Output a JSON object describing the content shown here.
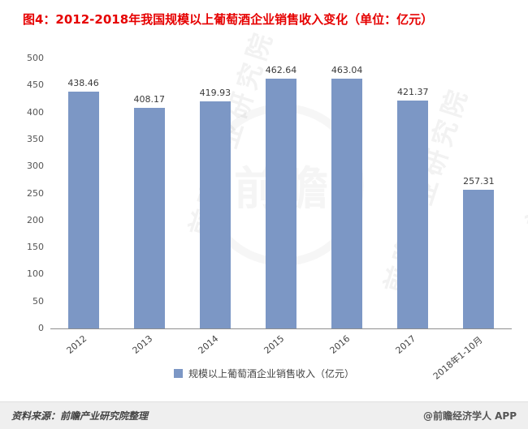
{
  "title": "图4：2012-2018年我国规模以上葡萄酒企业销售收入变化（单位：亿元）",
  "chart_data": {
    "type": "bar",
    "categories": [
      "2012",
      "2013",
      "2014",
      "2015",
      "2016",
      "2017",
      "2018年1-10月"
    ],
    "values": [
      438.46,
      408.17,
      419.93,
      462.64,
      463.04,
      421.37,
      257.31
    ],
    "value_labels": [
      "438.46",
      "408.17",
      "419.93",
      "462.64",
      "463.04",
      "421.37",
      "257.31"
    ],
    "title": "图4：2012-2018年我国规模以上葡萄酒企业销售收入变化（单位：亿元）",
    "xlabel": "",
    "ylabel": "",
    "ylim": [
      0,
      500
    ],
    "ytick_step": 50,
    "grid": false,
    "legend": "规模以上葡萄酒企业销售收入（亿元）",
    "legend_position": "bottom",
    "bar_color": "#7c97c5"
  },
  "watermark": {
    "text": "前瞻产业研究院",
    "logo_text": "前瞻"
  },
  "footer": {
    "source": "资料来源：前瞻产业研究院整理",
    "credit": "@前瞻经济学人 APP"
  },
  "colors": {
    "title": "#e60000",
    "bar": "#7c97c5",
    "axis_text": "#555555",
    "footer_bg": "#efefef"
  }
}
